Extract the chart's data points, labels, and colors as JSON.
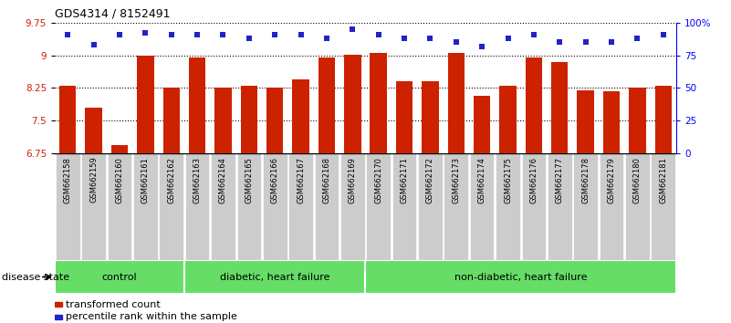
{
  "title": "GDS4314 / 8152491",
  "samples": [
    "GSM662158",
    "GSM662159",
    "GSM662160",
    "GSM662161",
    "GSM662162",
    "GSM662163",
    "GSM662164",
    "GSM662165",
    "GSM662166",
    "GSM662167",
    "GSM662168",
    "GSM662169",
    "GSM662170",
    "GSM662171",
    "GSM662172",
    "GSM662173",
    "GSM662174",
    "GSM662175",
    "GSM662176",
    "GSM662177",
    "GSM662178",
    "GSM662179",
    "GSM662180",
    "GSM662181"
  ],
  "bar_values": [
    8.3,
    7.8,
    6.95,
    9.0,
    8.25,
    8.95,
    8.25,
    8.3,
    8.25,
    8.45,
    8.95,
    9.02,
    9.05,
    8.4,
    8.4,
    9.05,
    8.08,
    8.3,
    8.95,
    8.85,
    8.2,
    8.18,
    8.25,
    8.3
  ],
  "dot_values": [
    91,
    83,
    91,
    92,
    91,
    91,
    91,
    88,
    91,
    91,
    88,
    95,
    91,
    88,
    88,
    85,
    82,
    88,
    91,
    85,
    85,
    85,
    88,
    91
  ],
  "ylim_left": [
    6.75,
    9.75
  ],
  "ylim_right": [
    0,
    100
  ],
  "yticks_left": [
    6.75,
    7.5,
    8.25,
    9.0,
    9.75
  ],
  "ytick_labels_left": [
    "6.75",
    "7.5",
    "8.25",
    "9",
    "9.75"
  ],
  "yticks_right": [
    0,
    25,
    50,
    75,
    100
  ],
  "ytick_labels_right": [
    "0",
    "25",
    "50",
    "75",
    "100%"
  ],
  "hgrid_lines": [
    7.5,
    8.25,
    9.0,
    9.75
  ],
  "bar_color": "#cc2200",
  "dot_color": "#2222cc",
  "groups": [
    {
      "label": "control",
      "start": 0,
      "end": 5
    },
    {
      "label": "diabetic, heart failure",
      "start": 5,
      "end": 12
    },
    {
      "label": "non-diabetic, heart failure",
      "start": 12,
      "end": 24
    }
  ],
  "group_color": "#66dd66",
  "xticklabel_bg": "#cccccc",
  "label_transformed": "transformed count",
  "label_percentile": "percentile rank within the sample",
  "disease_state_label": "disease state"
}
